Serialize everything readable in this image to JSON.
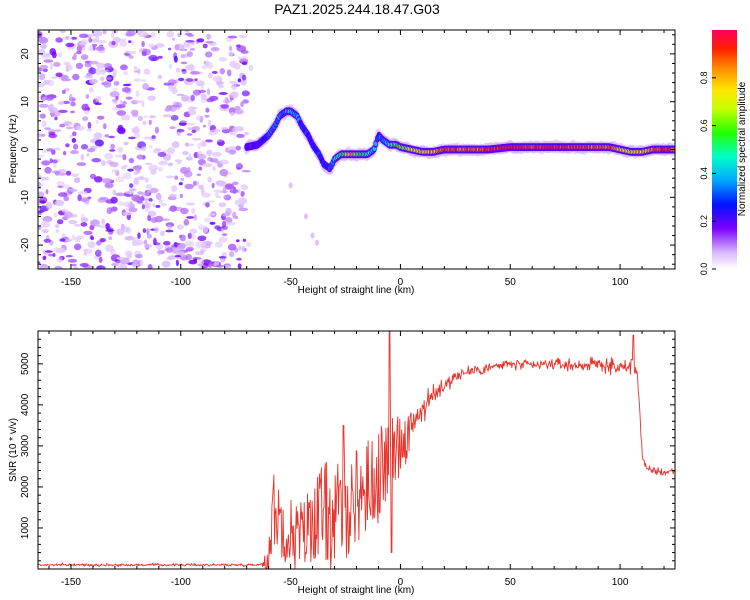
{
  "title": "PAZ1.2025.244.18.47.G03",
  "chart_data": [
    {
      "type": "heatmap",
      "xlabel": "Height of straight line (km)",
      "ylabel": "Frequency (Hz)",
      "xlim": [
        -165,
        125
      ],
      "ylim": [
        -25,
        25
      ],
      "xticks": [
        -150,
        -100,
        -50,
        0,
        50,
        100
      ],
      "yticks": [
        -20,
        -10,
        0,
        10,
        20
      ],
      "colorbar": {
        "label": "Normalized spectral amplitude",
        "range": [
          0,
          1
        ],
        "ticks": [
          0.0,
          0.2,
          0.4,
          0.6,
          0.8
        ]
      },
      "noise_region_x": [
        -165,
        -70
      ],
      "track": {
        "x": [
          -70,
          -65,
          -60,
          -57,
          -55,
          -52,
          -50,
          -47,
          -45,
          -42,
          -40,
          -37,
          -35,
          -32,
          -30,
          -27,
          -25,
          -22,
          -20,
          -17,
          -15,
          -12,
          -10,
          -8,
          -5,
          -2,
          0,
          5,
          10,
          15,
          20,
          30,
          40,
          50,
          60,
          70,
          80,
          90,
          95,
          100,
          105,
          110,
          115,
          120,
          125
        ],
        "frequency": [
          0.5,
          1,
          3,
          5,
          7,
          8,
          8,
          7,
          5,
          3,
          1,
          -1,
          -3,
          -4,
          -2,
          -1,
          -1,
          -1,
          -1,
          -1,
          -1,
          0,
          3,
          2,
          1,
          1,
          0.5,
          0,
          -0.5,
          -0.5,
          0,
          0,
          0,
          0.5,
          0.5,
          0.5,
          0.5,
          0.5,
          0.5,
          0,
          -0.5,
          -0.5,
          0,
          0,
          0
        ],
        "amplitude": [
          0.2,
          0.2,
          0.3,
          0.35,
          0.3,
          0.35,
          0.4,
          0.35,
          0.3,
          0.25,
          0.25,
          0.3,
          0.25,
          0.3,
          0.4,
          0.5,
          0.6,
          0.85,
          0.6,
          0.5,
          0.5,
          0.4,
          0.3,
          0.3,
          0.45,
          0.55,
          0.6,
          0.7,
          0.75,
          0.8,
          0.9,
          0.85,
          0.9,
          0.95,
          0.9,
          0.95,
          0.9,
          0.85,
          0.9,
          0.8,
          0.7,
          0.75,
          0.85,
          0.95,
          0.9
        ]
      }
    },
    {
      "type": "line",
      "xlabel": "Height of straight line (km)",
      "ylabel": "SNR (10 * v/v)",
      "xlim": [
        -165,
        125
      ],
      "ylim": [
        0,
        5800
      ],
      "xticks": [
        -150,
        -100,
        -50,
        0,
        50,
        100
      ],
      "yticks": [
        1000,
        2000,
        3000,
        4000,
        5000
      ],
      "series": [
        {
          "name": "SNR",
          "color": "#e8332a",
          "x": [
            -165,
            -150,
            -120,
            -90,
            -70,
            -63,
            -60,
            -58,
            -55,
            -50,
            -45,
            -40,
            -35,
            -30,
            -25,
            -20,
            -15,
            -10,
            -5,
            0,
            5,
            10,
            15,
            20,
            25,
            30,
            40,
            50,
            60,
            70,
            80,
            90,
            100,
            105,
            108,
            110,
            112,
            115,
            120,
            125
          ],
          "mean": [
            100,
            100,
            100,
            100,
            100,
            110,
            300,
            1500,
            1200,
            900,
            800,
            1200,
            1400,
            1200,
            1500,
            1800,
            2000,
            2300,
            2700,
            3100,
            3500,
            3900,
            4200,
            4500,
            4700,
            4800,
            4900,
            5000,
            4950,
            5000,
            4950,
            5000,
            4900,
            4950,
            4800,
            2800,
            2400,
            2400,
            2350,
            2400
          ],
          "noise": [
            60,
            60,
            60,
            60,
            60,
            60,
            400,
            900,
            900,
            900,
            900,
            1000,
            1300,
            1300,
            1300,
            1200,
            1200,
            1200,
            900,
            800,
            700,
            600,
            500,
            400,
            350,
            300,
            280,
            260,
            260,
            260,
            260,
            300,
            400,
            400,
            500,
            300,
            250,
            200,
            200,
            200
          ],
          "spikes": [
            [
              -5,
              5800
            ],
            [
              -4,
              400
            ],
            [
              106,
              5700
            ],
            [
              -26,
              3500
            ]
          ]
        }
      ]
    }
  ]
}
